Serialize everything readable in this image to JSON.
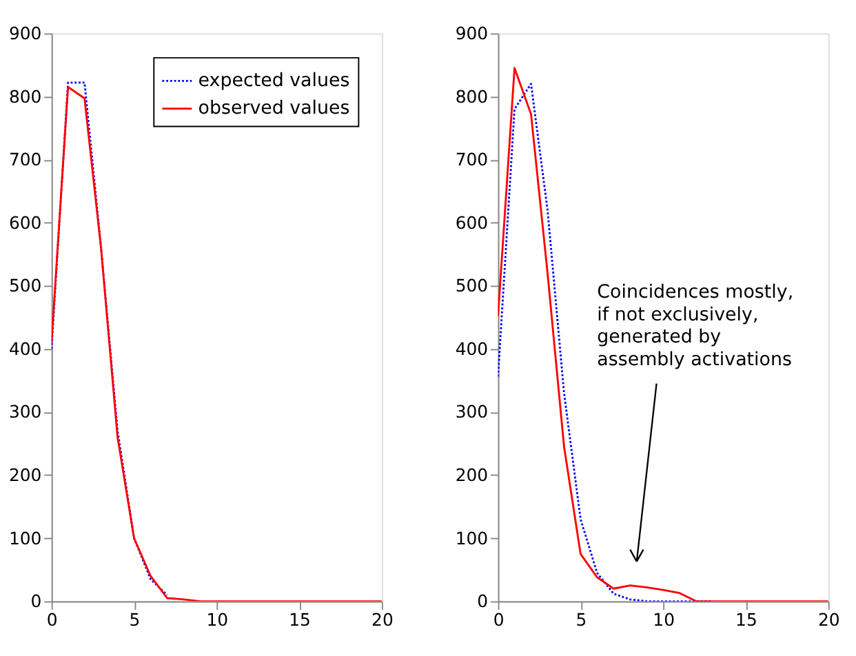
{
  "chart_data": [
    {
      "type": "line",
      "x": [
        0,
        1,
        2,
        3,
        4,
        5,
        6,
        7,
        8,
        9,
        10,
        11,
        12,
        13,
        14,
        15,
        16,
        17,
        18,
        19,
        20
      ],
      "xlim": [
        0,
        20
      ],
      "xticks": [
        0,
        5,
        10,
        15,
        20
      ],
      "ylim": [
        0,
        900
      ],
      "yticks": [
        0,
        100,
        200,
        300,
        400,
        500,
        600,
        700,
        800,
        900
      ],
      "grid": false,
      "legend": "top right",
      "series": [
        {
          "name": "expected values",
          "color": "#0000ff",
          "line_style": "dotted",
          "values": [
            400,
            822,
            822,
            560,
            270,
            100,
            35,
            10,
            null,
            null,
            null,
            null,
            null,
            null,
            null,
            null,
            null,
            null,
            null,
            null,
            null
          ]
        },
        {
          "name": "observed values",
          "color": "#ff0000",
          "line_style": "solid",
          "values": [
            410,
            815,
            797,
            560,
            260,
            100,
            40,
            5,
            3,
            0,
            0,
            0,
            0,
            0,
            0,
            0,
            0,
            0,
            0,
            0,
            0
          ]
        }
      ]
    },
    {
      "type": "line",
      "x": [
        0,
        1,
        2,
        3,
        4,
        5,
        6,
        7,
        8,
        9,
        10,
        11,
        12,
        13,
        14,
        15,
        16,
        17,
        18,
        19,
        20
      ],
      "xlim": [
        0,
        20
      ],
      "xticks": [
        0,
        5,
        10,
        15,
        20
      ],
      "ylim": [
        0,
        900
      ],
      "yticks": [
        0,
        100,
        200,
        300,
        400,
        500,
        600,
        700,
        800,
        900
      ],
      "grid": false,
      "legend": false,
      "series": [
        {
          "color": "#0000ff",
          "line_style": "dotted",
          "values": [
            356,
            780,
            820,
            620,
            330,
            130,
            45,
            12,
            3,
            0,
            0,
            0,
            0,
            0,
            null,
            null,
            null,
            null,
            null,
            null,
            null
          ]
        },
        {
          "color": "#ff0000",
          "line_style": "solid",
          "values": [
            452,
            845,
            772,
            520,
            245,
            75,
            38,
            20,
            25,
            22,
            18,
            13,
            0,
            0,
            0,
            0,
            0,
            0,
            0,
            0,
            0
          ]
        }
      ],
      "annotations": [
        "Coincidences mostly,\nif not exclusively,\ngenerated by\nassembly activations"
      ]
    }
  ]
}
